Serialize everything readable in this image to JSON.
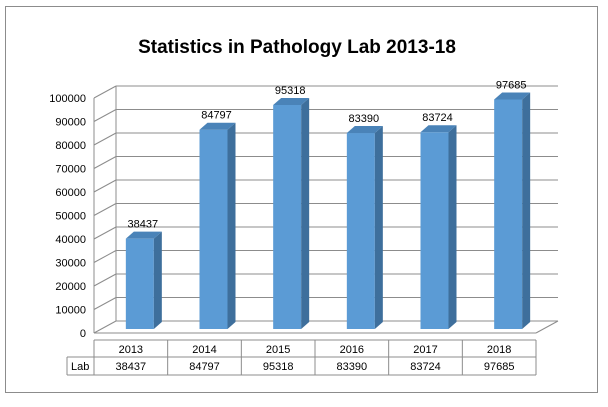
{
  "chart_data": {
    "type": "bar",
    "title": "Statistics in Pathology Lab 2013-18",
    "categories": [
      "2013",
      "2014",
      "2015",
      "2016",
      "2017",
      "2018"
    ],
    "series": [
      {
        "name": "Lab",
        "values": [
          38437,
          84797,
          95318,
          83390,
          83724,
          97685
        ]
      }
    ],
    "data_labels": [
      "38437",
      "84797",
      "95318",
      "83390",
      "83724",
      "97685"
    ],
    "yticks": [
      "0",
      "10000",
      "20000",
      "30000",
      "40000",
      "50000",
      "60000",
      "70000",
      "80000",
      "90000",
      "100000"
    ],
    "ylim": [
      0,
      100000
    ],
    "grid": true,
    "style": "3d-column",
    "data_table": {
      "header": [
        "2013",
        "2014",
        "2015",
        "2016",
        "2017",
        "2018"
      ],
      "row_label": "Lab",
      "row_values": [
        "38437",
        "84797",
        "95318",
        "83390",
        "83724",
        "97685"
      ]
    },
    "colors": {
      "bar_front": "#5b9bd5",
      "bar_side": "#3e6f9c",
      "bar_top": "#4a83b8",
      "grid": "#8c8c8c"
    }
  }
}
